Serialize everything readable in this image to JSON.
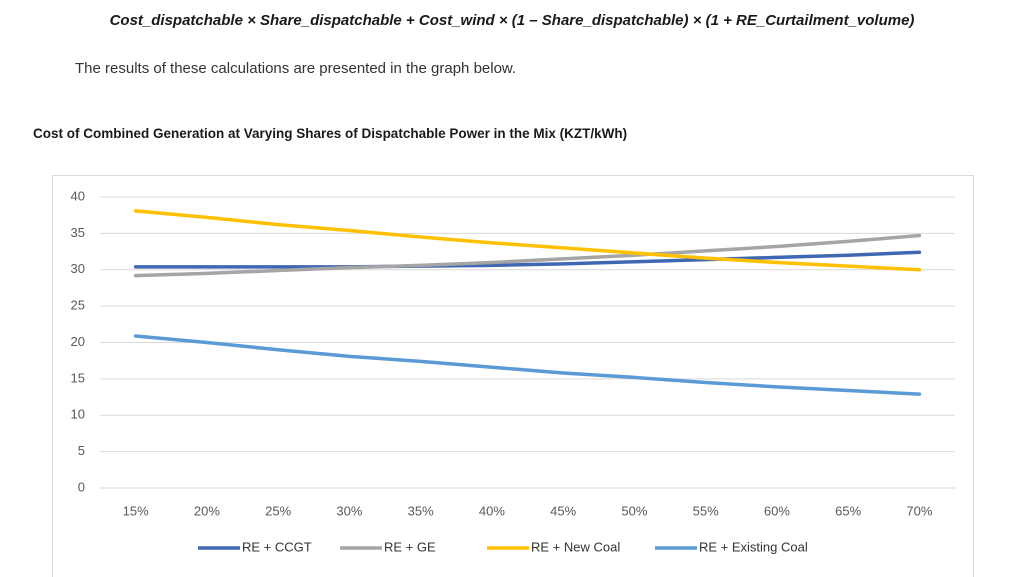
{
  "formula": "Cost_dispatchable × Share_dispatchable + Cost_wind × (1 – Share_dispatchable) × (1 + RE_Curtailment_volume)",
  "paragraph": "The results of these calculations are presented in the graph below.",
  "chart_data": {
    "type": "line",
    "title": "Cost of Combined Generation at Varying Shares of Dispatchable Power in the Mix (KZT/kWh)",
    "categories": [
      "15%",
      "20%",
      "25%",
      "30%",
      "35%",
      "40%",
      "45%",
      "50%",
      "55%",
      "60%",
      "65%",
      "70%"
    ],
    "series": [
      {
        "name": "RE + CCGT",
        "color": "#4068b2",
        "values": [
          30.4,
          30.4,
          30.4,
          30.4,
          30.5,
          30.6,
          30.8,
          31.1,
          31.4,
          31.7,
          32.0,
          32.4
        ]
      },
      {
        "name": "RE + GE",
        "color": "#a5a5a5",
        "values": [
          29.2,
          29.5,
          29.9,
          30.3,
          30.6,
          31.0,
          31.5,
          32.0,
          32.6,
          33.2,
          33.9,
          34.7
        ]
      },
      {
        "name": "RE + New Coal",
        "color": "#ffc000",
        "values": [
          38.1,
          37.2,
          36.2,
          35.4,
          34.5,
          33.7,
          33.0,
          32.3,
          31.6,
          31.0,
          30.5,
          30.0
        ]
      },
      {
        "name": "RE + Existing Coal",
        "color": "#5b9bd5",
        "values": [
          20.9,
          20.0,
          19.0,
          18.1,
          17.4,
          16.6,
          15.8,
          15.2,
          14.5,
          13.9,
          13.4,
          12.9
        ]
      }
    ],
    "ylim": [
      0,
      40
    ],
    "yticks": [
      0,
      5,
      10,
      15,
      20,
      25,
      30,
      35,
      40
    ],
    "grid": true,
    "legend": "bottom"
  }
}
